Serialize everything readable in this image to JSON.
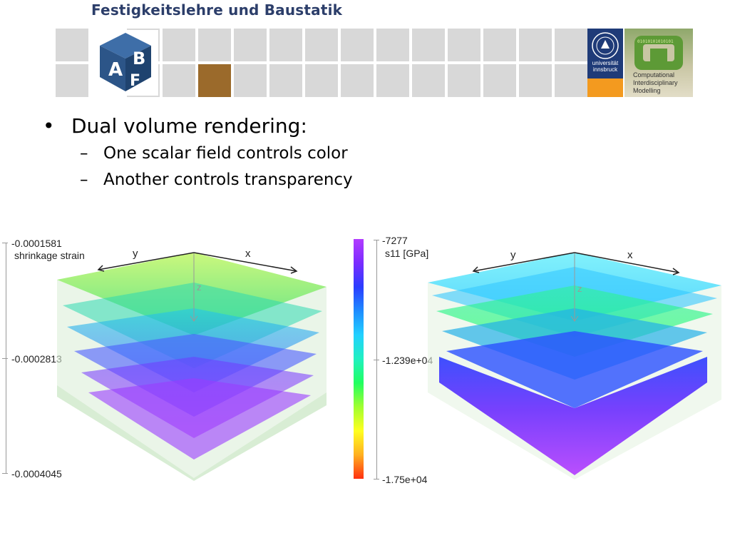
{
  "header": {
    "title": "Festigkeitslehre und Baustatik",
    "logo_abf_letters": [
      "A",
      "B",
      "F"
    ],
    "logo_uibk_text": "universität innsbruck",
    "logo_cim_text": "Computational Interdisciplinary Modelling",
    "colors": {
      "tile": "#d8d8d8",
      "accent_tile": "#9b6a2b",
      "abf_blue": "#2e5a8c",
      "uibk_blue": "#1f3b78",
      "uibk_orange": "#f39a1f",
      "cim_green": "#6fa03a"
    }
  },
  "bullets": {
    "main": "Dual volume rendering:",
    "subs": [
      "One scalar field controls color",
      "Another controls transparency"
    ]
  },
  "left_view": {
    "legend_max": "-0.0001581",
    "legend_title": "shrinkage strain",
    "legend_mid": "-0.0002813",
    "legend_min": "-0.0004045",
    "axis_y": "y",
    "axis_x": "x",
    "axis_z": "z"
  },
  "colorbar": {
    "max": "-7277",
    "title": "s11 [GPa]",
    "mid": "-1.239e+04",
    "min": "-1.75e+04",
    "gradient": [
      "#b23cff",
      "#7a2cff",
      "#2a3dff",
      "#1e8cff",
      "#22d0ff",
      "#20f0c0",
      "#20ff60",
      "#a0ff30",
      "#ffff20",
      "#ffb020",
      "#ff3010"
    ]
  },
  "right_view": {
    "axis_y": "y",
    "axis_x": "x",
    "axis_z": "z"
  }
}
